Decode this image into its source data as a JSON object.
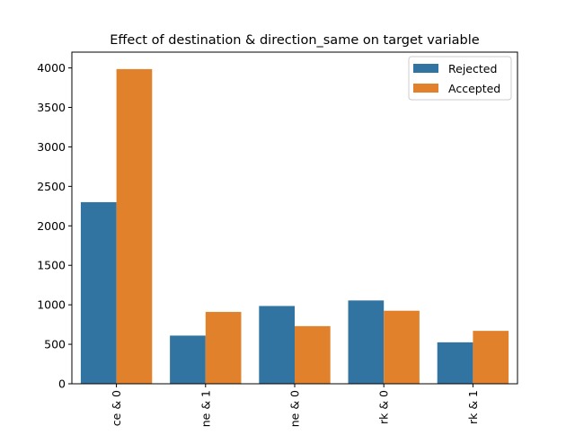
{
  "chart_data": {
    "type": "bar",
    "title": "Effect of destination & direction_same on target variable",
    "xlabel": "",
    "ylabel": "",
    "categories": [
      "ce & 0",
      "ne & 1",
      "ne & 0",
      "rk & 0",
      "rk & 1"
    ],
    "series": [
      {
        "name": "Rejected",
        "color": "#3274a1",
        "values": [
          2300,
          610,
          985,
          1055,
          525
        ]
      },
      {
        "name": "Accepted",
        "color": "#e1812c",
        "values": [
          3985,
          910,
          730,
          925,
          670
        ]
      }
    ],
    "ylim": [
      0,
      4200
    ],
    "yticks": [
      0,
      500,
      1000,
      1500,
      2000,
      2500,
      3000,
      3500,
      4000
    ],
    "grid": false,
    "legend_position": "top-right"
  }
}
